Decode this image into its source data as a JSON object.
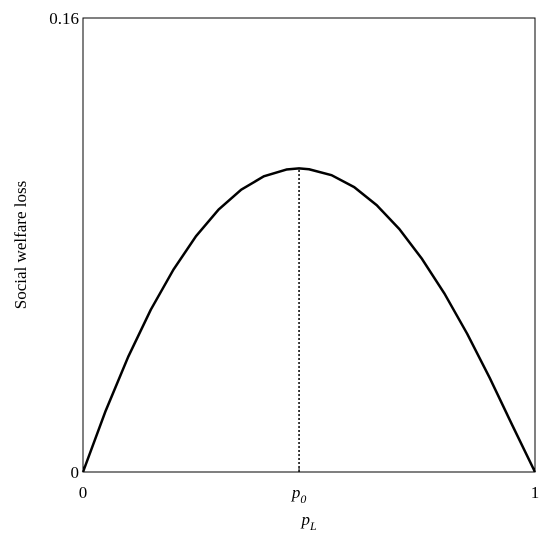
{
  "chart_data": {
    "type": "line",
    "ylabel": "Social welfare loss",
    "xlabel": "pL",
    "x": [
      0,
      0.05,
      0.1,
      0.15,
      0.2,
      0.25,
      0.3,
      0.35,
      0.4,
      0.45,
      0.478,
      0.5,
      0.55,
      0.6,
      0.65,
      0.7,
      0.75,
      0.8,
      0.85,
      0.9,
      0.95,
      1
    ],
    "series": [
      {
        "color": "#000000",
        "values": [
          0,
          0.0215,
          0.0406,
          0.0572,
          0.0713,
          0.0831,
          0.0925,
          0.0995,
          0.1042,
          0.1066,
          0.107,
          0.1067,
          0.1046,
          0.1004,
          0.094,
          0.0856,
          0.0751,
          0.0628,
          0.0487,
          0.0331,
          0.0164,
          0
        ]
      }
    ],
    "peak_index": 10,
    "xlim": [
      0,
      1
    ],
    "xticks": [
      0,
      {
        "value": 0.478,
        "label": "p0"
      },
      1
    ],
    "ylim": [
      0,
      0.16
    ],
    "yticks": [
      0,
      0.16
    ]
  }
}
